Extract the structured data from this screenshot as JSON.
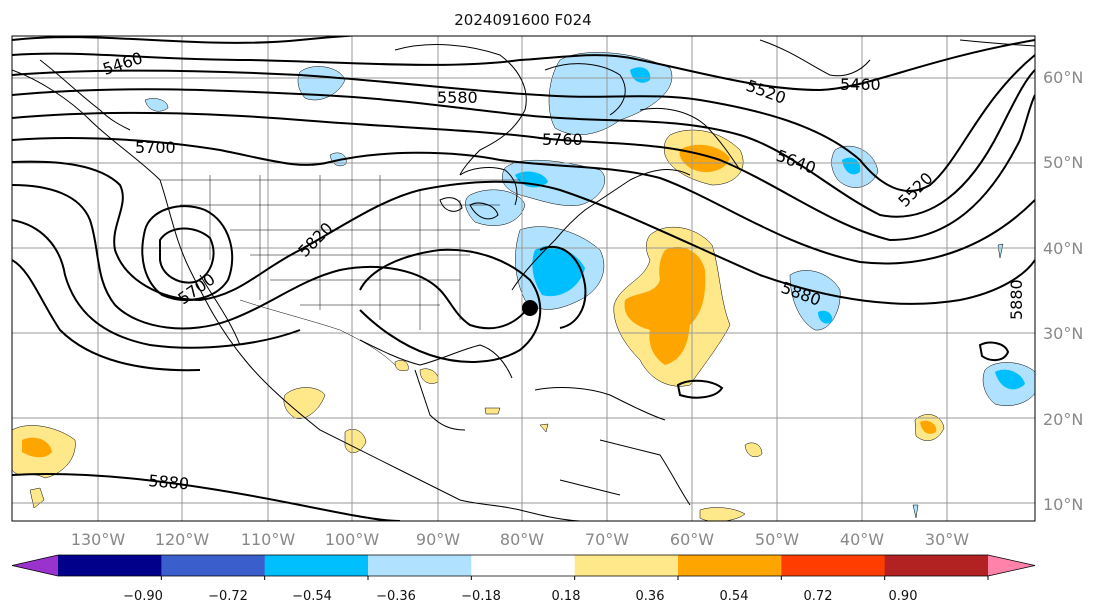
{
  "title": "2024091600 F024",
  "lon_labels": [
    "130°W",
    "120°W",
    "110°W",
    "100°W",
    "90°W",
    "80°W",
    "70°W",
    "60°W",
    "50°W",
    "40°W",
    "30°W"
  ],
  "lat_labels": [
    "60°N",
    "50°N",
    "40°N",
    "30°N",
    "20°N",
    "10°N"
  ],
  "contour_labels": [
    "5460",
    "5580",
    "5700",
    "5760",
    "5520",
    "5460",
    "5640",
    "5520",
    "5820",
    "5700",
    "5880",
    "5880",
    "5880"
  ],
  "colorbar": {
    "ticks": [
      "−0.90",
      "−0.72",
      "−0.54",
      "−0.36",
      "−0.18",
      "0.18",
      "0.36",
      "0.54",
      "0.72",
      "0.90"
    ],
    "colors": [
      "#9a32cd",
      "#00008b",
      "#3a5fcd",
      "#00bfff",
      "#b0e2ff",
      "#ffffff",
      "#ffe88a",
      "#ffa500",
      "#ff3d00",
      "#b22222",
      "#ff82ab"
    ]
  },
  "colors": {
    "grid": "#999999",
    "contour": "#000000",
    "coast": "#000000"
  }
}
